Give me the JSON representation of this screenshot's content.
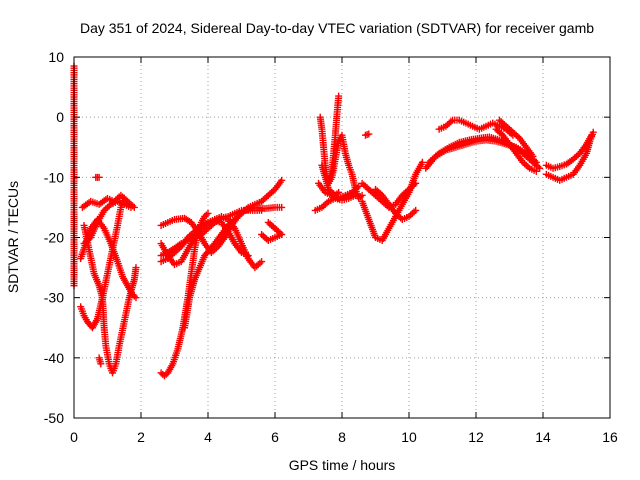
{
  "chart_data": {
    "type": "scatter",
    "title": "Day 351 of 2024, Sidereal Day-to-day VTEC variation (SDTVAR) for receiver gamb",
    "xlabel": "GPS time / hours",
    "ylabel": "SDTVAR / TECUs",
    "xlim": [
      0,
      16
    ],
    "ylim": [
      -50,
      10
    ],
    "xticks": [
      0,
      2,
      4,
      6,
      8,
      10,
      12,
      14,
      16
    ],
    "yticks": [
      -50,
      -40,
      -30,
      -20,
      -10,
      0,
      10
    ],
    "grid": true,
    "marker": "+",
    "color": "#ff0000",
    "series": [
      {
        "points": [
          [
            0.0,
            8.5
          ],
          [
            0.0,
            -16.5
          ],
          [
            0.0,
            -17.5
          ],
          [
            0.0,
            -28
          ]
        ]
      },
      {
        "points": [
          [
            0.2,
            -31.5
          ],
          [
            0.3,
            -33
          ],
          [
            0.4,
            -34
          ],
          [
            0.55,
            -35
          ],
          [
            0.7,
            -33.5
          ],
          [
            0.85,
            -30
          ],
          [
            1.0,
            -26
          ],
          [
            1.15,
            -22
          ],
          [
            1.3,
            -18
          ],
          [
            1.4,
            -15
          ],
          [
            1.5,
            -13.5
          ]
        ]
      },
      {
        "points": [
          [
            0.3,
            -18
          ],
          [
            0.45,
            -22
          ],
          [
            0.6,
            -26
          ],
          [
            0.75,
            -28
          ],
          [
            0.85,
            -30
          ],
          [
            0.9,
            -35
          ],
          [
            0.95,
            -38
          ],
          [
            1.05,
            -41
          ],
          [
            1.15,
            -42.5
          ],
          [
            1.25,
            -41
          ],
          [
            1.35,
            -38
          ],
          [
            1.5,
            -34
          ],
          [
            1.65,
            -30
          ],
          [
            1.8,
            -27
          ],
          [
            1.85,
            -25
          ]
        ]
      },
      {
        "points": [
          [
            0.2,
            -23.5
          ],
          [
            0.35,
            -21
          ],
          [
            0.5,
            -18.5
          ],
          [
            0.7,
            -17
          ],
          [
            0.9,
            -18.5
          ],
          [
            1.1,
            -21
          ],
          [
            1.3,
            -24
          ],
          [
            1.45,
            -26.5
          ],
          [
            1.6,
            -28
          ],
          [
            1.75,
            -29.5
          ],
          [
            1.85,
            -30
          ]
        ]
      },
      {
        "points": [
          [
            0.25,
            -15
          ],
          [
            0.5,
            -14
          ],
          [
            0.75,
            -14.5
          ],
          [
            1.0,
            -13.5
          ],
          [
            1.2,
            -14
          ],
          [
            1.4,
            -13
          ],
          [
            1.6,
            -14
          ],
          [
            1.8,
            -15
          ]
        ]
      },
      {
        "points": [
          [
            0.3,
            -21
          ],
          [
            0.5,
            -20
          ],
          [
            0.7,
            -17.5
          ],
          [
            0.9,
            -15.5
          ],
          [
            1.1,
            -14.5
          ],
          [
            1.3,
            -14
          ],
          [
            1.5,
            -14.5
          ],
          [
            1.7,
            -15
          ]
        ]
      },
      {
        "points": [
          [
            0.65,
            -10
          ],
          [
            0.75,
            -10
          ]
        ]
      },
      {
        "points": [
          [
            0.75,
            -40
          ],
          [
            0.8,
            -41
          ]
        ]
      },
      {
        "points": [
          [
            2.6,
            -18
          ],
          [
            2.8,
            -17.5
          ],
          [
            3.0,
            -17
          ],
          [
            3.3,
            -16.8
          ],
          [
            3.5,
            -17.5
          ],
          [
            3.7,
            -19
          ],
          [
            3.9,
            -21
          ],
          [
            4.1,
            -22.5
          ],
          [
            4.3,
            -21.5
          ],
          [
            4.5,
            -20
          ],
          [
            4.7,
            -18
          ],
          [
            4.9,
            -16.5
          ],
          [
            5.1,
            -15.5
          ],
          [
            5.4,
            -15
          ],
          [
            5.7,
            -15.2
          ],
          [
            6.0,
            -15
          ],
          [
            6.2,
            -15
          ]
        ]
      },
      {
        "points": [
          [
            2.6,
            -23
          ],
          [
            2.8,
            -22.5
          ],
          [
            3.0,
            -21.8
          ],
          [
            3.2,
            -21
          ],
          [
            3.4,
            -20.5
          ],
          [
            3.6,
            -20
          ],
          [
            3.8,
            -19.5
          ],
          [
            4.0,
            -18.5
          ],
          [
            4.2,
            -17.5
          ],
          [
            4.4,
            -16.8
          ],
          [
            4.6,
            -16.5
          ],
          [
            4.8,
            -16
          ],
          [
            5.0,
            -15.5
          ],
          [
            5.2,
            -15.5
          ],
          [
            5.4,
            -15.5
          ],
          [
            5.6,
            -15.5
          ]
        ]
      },
      {
        "points": [
          [
            2.6,
            -21
          ],
          [
            2.8,
            -23
          ],
          [
            3.0,
            -24.5
          ],
          [
            3.2,
            -24
          ],
          [
            3.4,
            -22
          ],
          [
            3.6,
            -20
          ],
          [
            3.8,
            -18.5
          ],
          [
            4.0,
            -17.5
          ],
          [
            4.2,
            -17.2
          ],
          [
            4.4,
            -17.5
          ],
          [
            4.6,
            -19
          ],
          [
            4.8,
            -21
          ],
          [
            5.0,
            -22.5
          ],
          [
            5.2,
            -23
          ]
        ]
      },
      {
        "points": [
          [
            2.6,
            -24
          ],
          [
            2.8,
            -23.5
          ],
          [
            3.0,
            -22.5
          ],
          [
            3.2,
            -21.5
          ],
          [
            3.4,
            -20
          ],
          [
            3.6,
            -19
          ],
          [
            3.8,
            -18
          ],
          [
            4.0,
            -17.5
          ],
          [
            4.2,
            -17
          ],
          [
            4.4,
            -16.5
          ],
          [
            4.6,
            -17
          ],
          [
            4.8,
            -18.5
          ],
          [
            5.0,
            -21
          ],
          [
            5.2,
            -23.5
          ],
          [
            5.4,
            -25
          ],
          [
            5.6,
            -24
          ]
        ]
      },
      {
        "points": [
          [
            2.6,
            -42.5
          ],
          [
            2.7,
            -43
          ],
          [
            2.8,
            -42.5
          ],
          [
            2.95,
            -41
          ],
          [
            3.1,
            -38.5
          ],
          [
            3.25,
            -35
          ],
          [
            3.4,
            -30
          ],
          [
            3.5,
            -26
          ],
          [
            3.6,
            -22
          ],
          [
            3.7,
            -19
          ],
          [
            3.8,
            -17.5
          ],
          [
            3.9,
            -16.5
          ],
          [
            4.0,
            -16
          ]
        ]
      },
      {
        "points": [
          [
            3.3,
            -35
          ],
          [
            3.45,
            -30
          ],
          [
            3.6,
            -27
          ],
          [
            3.75,
            -25
          ],
          [
            3.9,
            -23
          ],
          [
            4.05,
            -22
          ],
          [
            4.2,
            -21
          ],
          [
            4.4,
            -19.5
          ],
          [
            4.6,
            -18
          ],
          [
            4.8,
            -17
          ],
          [
            5.0,
            -16
          ],
          [
            5.2,
            -15
          ],
          [
            5.4,
            -14.5
          ],
          [
            5.6,
            -14
          ],
          [
            5.8,
            -13
          ],
          [
            6.0,
            -12
          ],
          [
            6.2,
            -10.5
          ]
        ]
      },
      {
        "points": [
          [
            5.6,
            -19.5
          ],
          [
            5.8,
            -20.5
          ],
          [
            6.0,
            -20
          ],
          [
            6.2,
            -19.5
          ],
          [
            5.8,
            -17.5
          ],
          [
            6.0,
            -18.5
          ]
        ]
      },
      {
        "points": [
          [
            7.2,
            -15.5
          ],
          [
            7.4,
            -15
          ],
          [
            7.6,
            -14
          ],
          [
            7.8,
            -13.5
          ],
          [
            8.0,
            -13.8
          ],
          [
            8.2,
            -13.5
          ],
          [
            8.4,
            -13
          ]
        ]
      },
      {
        "points": [
          [
            7.3,
            -11
          ],
          [
            7.5,
            -12.5
          ],
          [
            7.7,
            -13
          ],
          [
            7.9,
            -13.5
          ],
          [
            8.1,
            -13
          ],
          [
            8.3,
            -12.5
          ],
          [
            8.5,
            -11.5
          ]
        ]
      },
      {
        "points": [
          [
            7.35,
            0
          ],
          [
            7.4,
            -2
          ],
          [
            7.45,
            -5
          ],
          [
            7.5,
            -8
          ],
          [
            7.55,
            -10
          ],
          [
            7.6,
            -10.5
          ],
          [
            7.7,
            -9
          ],
          [
            7.8,
            -3
          ],
          [
            7.85,
            0.5
          ],
          [
            7.9,
            3.5
          ]
        ]
      },
      {
        "points": [
          [
            7.6,
            -11
          ],
          [
            7.7,
            -10
          ],
          [
            7.8,
            -7
          ],
          [
            7.9,
            -4
          ],
          [
            8.0,
            -3
          ],
          [
            8.1,
            -6
          ],
          [
            8.2,
            -8
          ],
          [
            8.3,
            -9.5
          ],
          [
            8.4,
            -12
          ],
          [
            8.5,
            -13.5
          ],
          [
            8.6,
            -13
          ]
        ]
      },
      {
        "points": [
          [
            7.4,
            -8
          ],
          [
            7.5,
            -10
          ],
          [
            7.6,
            -12
          ],
          [
            7.7,
            -12.5
          ],
          [
            7.8,
            -13
          ],
          [
            7.9,
            -12.5
          ]
        ]
      },
      {
        "points": [
          [
            8.6,
            -11
          ],
          [
            8.8,
            -12
          ],
          [
            9.0,
            -13
          ],
          [
            9.2,
            -14
          ],
          [
            9.4,
            -15
          ],
          [
            9.6,
            -14.5
          ],
          [
            9.8,
            -13
          ],
          [
            10.0,
            -12
          ],
          [
            10.2,
            -11
          ]
        ]
      },
      {
        "points": [
          [
            8.6,
            -14
          ],
          [
            8.8,
            -17
          ],
          [
            9.0,
            -20
          ],
          [
            9.2,
            -20.5
          ],
          [
            9.4,
            -18.5
          ],
          [
            9.6,
            -16.5
          ],
          [
            9.8,
            -14.5
          ],
          [
            10.0,
            -12.5
          ],
          [
            10.2,
            -9.5
          ],
          [
            10.4,
            -7.5
          ]
        ]
      },
      {
        "points": [
          [
            9.0,
            -12
          ],
          [
            9.2,
            -13
          ],
          [
            9.4,
            -14.5
          ],
          [
            9.6,
            -16
          ],
          [
            9.8,
            -17
          ],
          [
            10.0,
            -16.5
          ],
          [
            10.2,
            -15.5
          ]
        ]
      },
      {
        "points": [
          [
            8.7,
            -3
          ],
          [
            8.8,
            -2.8
          ]
        ]
      },
      {
        "points": [
          [
            10.5,
            -8.5
          ],
          [
            10.8,
            -6.5
          ],
          [
            11.1,
            -5.5
          ],
          [
            11.4,
            -5
          ],
          [
            11.7,
            -4.5
          ],
          [
            12.0,
            -4
          ],
          [
            12.3,
            -3.8
          ],
          [
            12.6,
            -4
          ],
          [
            12.9,
            -4.5
          ],
          [
            13.2,
            -5
          ],
          [
            13.5,
            -6
          ],
          [
            13.8,
            -7.5
          ]
        ]
      },
      {
        "points": [
          [
            10.6,
            -7.5
          ],
          [
            10.9,
            -6
          ],
          [
            11.2,
            -5
          ],
          [
            11.5,
            -4.2
          ],
          [
            11.8,
            -3.8
          ],
          [
            12.1,
            -3.5
          ],
          [
            12.4,
            -3.3
          ],
          [
            12.7,
            -3.8
          ],
          [
            13.0,
            -4.5
          ],
          [
            13.3,
            -5.5
          ],
          [
            13.6,
            -7
          ],
          [
            13.9,
            -8.5
          ]
        ]
      },
      {
        "points": [
          [
            10.9,
            -2
          ],
          [
            11.1,
            -1.5
          ],
          [
            11.3,
            -0.5
          ],
          [
            11.5,
            -0.5
          ],
          [
            11.7,
            -1
          ],
          [
            11.9,
            -1.5
          ],
          [
            12.1,
            -2
          ],
          [
            12.3,
            -1.5
          ],
          [
            12.5,
            -1
          ],
          [
            12.7,
            -1.5
          ],
          [
            12.9,
            -2
          ],
          [
            13.1,
            -3
          ]
        ]
      },
      {
        "points": [
          [
            12.6,
            -2
          ],
          [
            12.8,
            -3
          ],
          [
            13.0,
            -4.5
          ],
          [
            13.2,
            -6
          ],
          [
            13.4,
            -7.5
          ],
          [
            13.6,
            -8.5
          ],
          [
            13.8,
            -9
          ]
        ]
      },
      {
        "points": [
          [
            12.7,
            -0.5
          ],
          [
            12.9,
            -1.5
          ],
          [
            13.1,
            -2.5
          ],
          [
            13.3,
            -3.5
          ],
          [
            13.5,
            -5
          ],
          [
            13.7,
            -6.5
          ]
        ]
      },
      {
        "points": [
          [
            14.1,
            -9.5
          ],
          [
            14.3,
            -10
          ],
          [
            14.5,
            -10.5
          ],
          [
            14.7,
            -10
          ],
          [
            14.9,
            -9.5
          ],
          [
            15.1,
            -8
          ],
          [
            15.3,
            -6
          ],
          [
            15.4,
            -4
          ],
          [
            15.5,
            -2.5
          ]
        ]
      },
      {
        "points": [
          [
            14.1,
            -8
          ],
          [
            14.3,
            -8.5
          ],
          [
            14.5,
            -8.2
          ],
          [
            14.7,
            -7.8
          ],
          [
            14.9,
            -7
          ],
          [
            15.1,
            -6
          ],
          [
            15.3,
            -4.5
          ],
          [
            15.45,
            -3
          ]
        ]
      }
    ]
  }
}
